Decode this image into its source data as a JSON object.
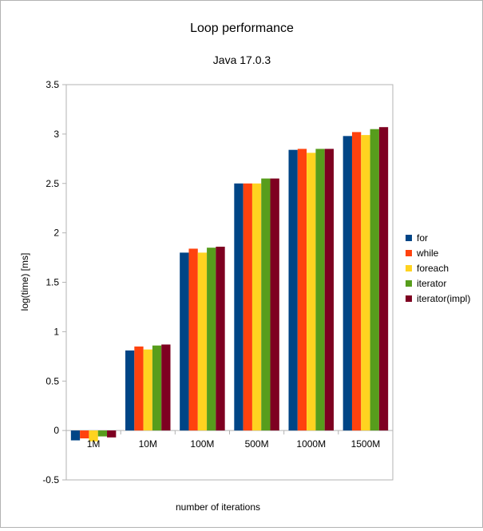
{
  "chart_data": {
    "type": "bar",
    "title": "Loop performance",
    "subtitle": "Java 17.0.3",
    "xlabel": "number of iterations",
    "ylabel": "log(time) [ms]",
    "ylim": [
      -0.5,
      3.5
    ],
    "yticks": [
      -0.5,
      0,
      0.5,
      1,
      1.5,
      2,
      2.5,
      3,
      3.5
    ],
    "ytick_labels": [
      "-0.5",
      "0",
      "0.5",
      "1",
      "1.5",
      "2",
      "2.5",
      "3",
      "3.5"
    ],
    "grid": false,
    "legend_position": "right",
    "categories": [
      "1M",
      "10M",
      "100M",
      "500M",
      "1000M",
      "1500M"
    ],
    "series": [
      {
        "name": "for",
        "color": "#004586",
        "values": [
          -0.1,
          0.81,
          1.8,
          2.5,
          2.84,
          2.98
        ]
      },
      {
        "name": "while",
        "color": "#ff420e",
        "values": [
          -0.08,
          0.85,
          1.84,
          2.5,
          2.85,
          3.02
        ]
      },
      {
        "name": "foreach",
        "color": "#ffd320",
        "values": [
          -0.11,
          0.82,
          1.8,
          2.5,
          2.81,
          2.99
        ]
      },
      {
        "name": "iterator",
        "color": "#579d1c",
        "values": [
          -0.06,
          0.86,
          1.85,
          2.55,
          2.85,
          3.05
        ]
      },
      {
        "name": "iterator(impl)",
        "color": "#7e0021",
        "values": [
          -0.07,
          0.87,
          1.86,
          2.55,
          2.85,
          3.07
        ]
      }
    ]
  }
}
